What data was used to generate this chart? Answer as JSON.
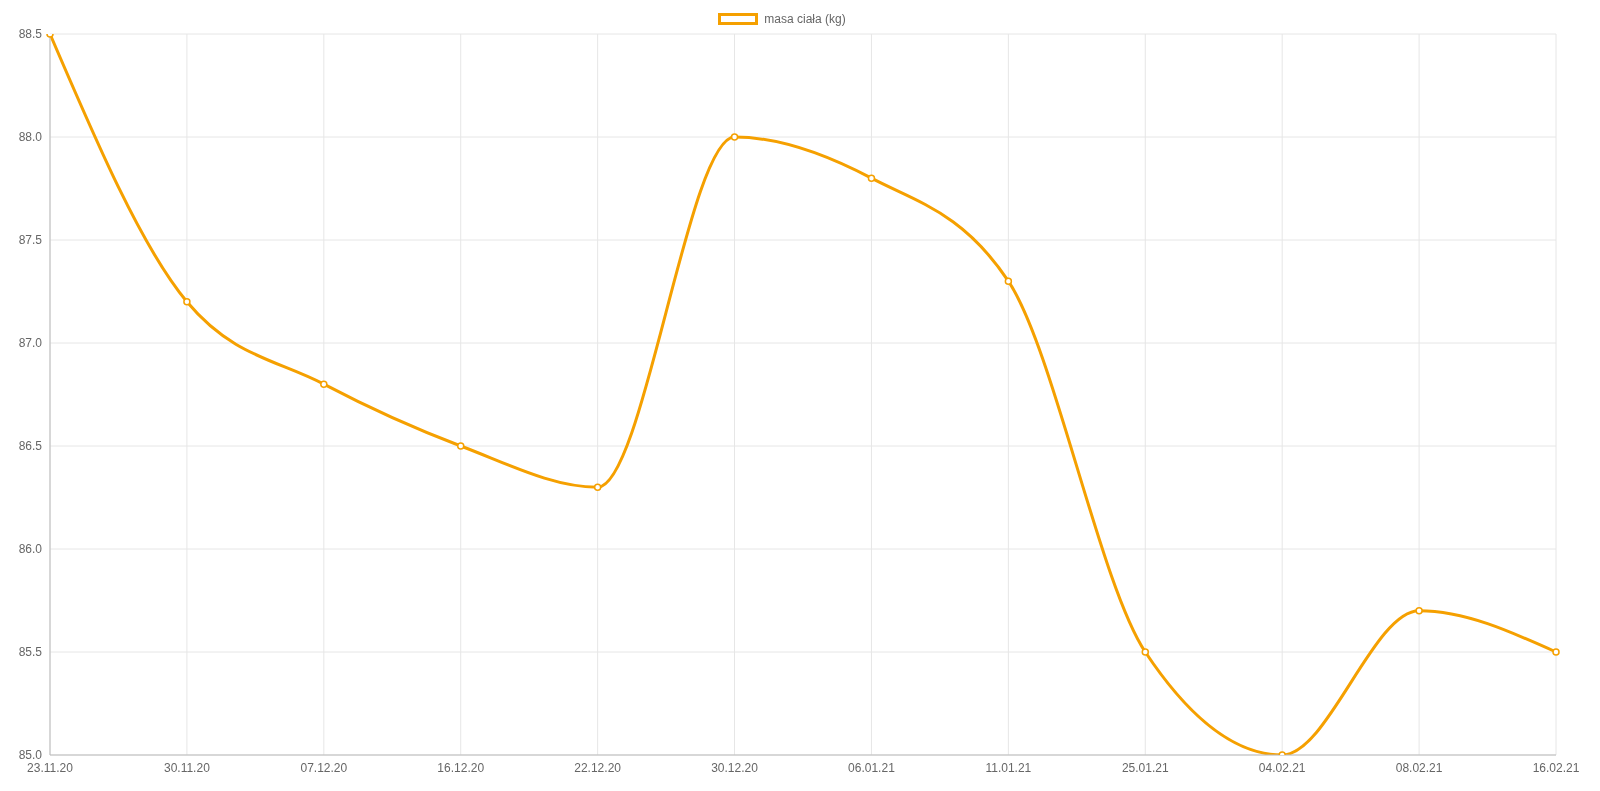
{
  "chart_data": {
    "type": "line",
    "categories": [
      "23.11.20",
      "30.11.20",
      "07.12.20",
      "16.12.20",
      "22.12.20",
      "30.12.20",
      "06.01.21",
      "11.01.21",
      "25.01.21",
      "04.02.21",
      "08.02.21",
      "16.02.21"
    ],
    "series": [
      {
        "name": "masa ciała (kg)",
        "color": "#f5a000",
        "values": [
          88.5,
          87.2,
          86.8,
          86.5,
          86.3,
          88.0,
          87.8,
          87.3,
          85.5,
          85.0,
          85.7,
          85.5
        ]
      }
    ],
    "ylim": [
      85,
      88.5
    ],
    "yticks": [
      {
        "value": 85,
        "label": "85.0"
      },
      {
        "value": 85.5,
        "label": "85.5"
      },
      {
        "value": 86,
        "label": "86.0"
      },
      {
        "value": 86.5,
        "label": "86.5"
      },
      {
        "value": 87,
        "label": "87.0"
      },
      {
        "value": 87.5,
        "label": "87.5"
      },
      {
        "value": 88,
        "label": "88.0"
      },
      {
        "value": 88.5,
        "label": "88.5"
      }
    ],
    "grid": true,
    "legend": "top",
    "marker": "circle",
    "line_style": "solid"
  }
}
